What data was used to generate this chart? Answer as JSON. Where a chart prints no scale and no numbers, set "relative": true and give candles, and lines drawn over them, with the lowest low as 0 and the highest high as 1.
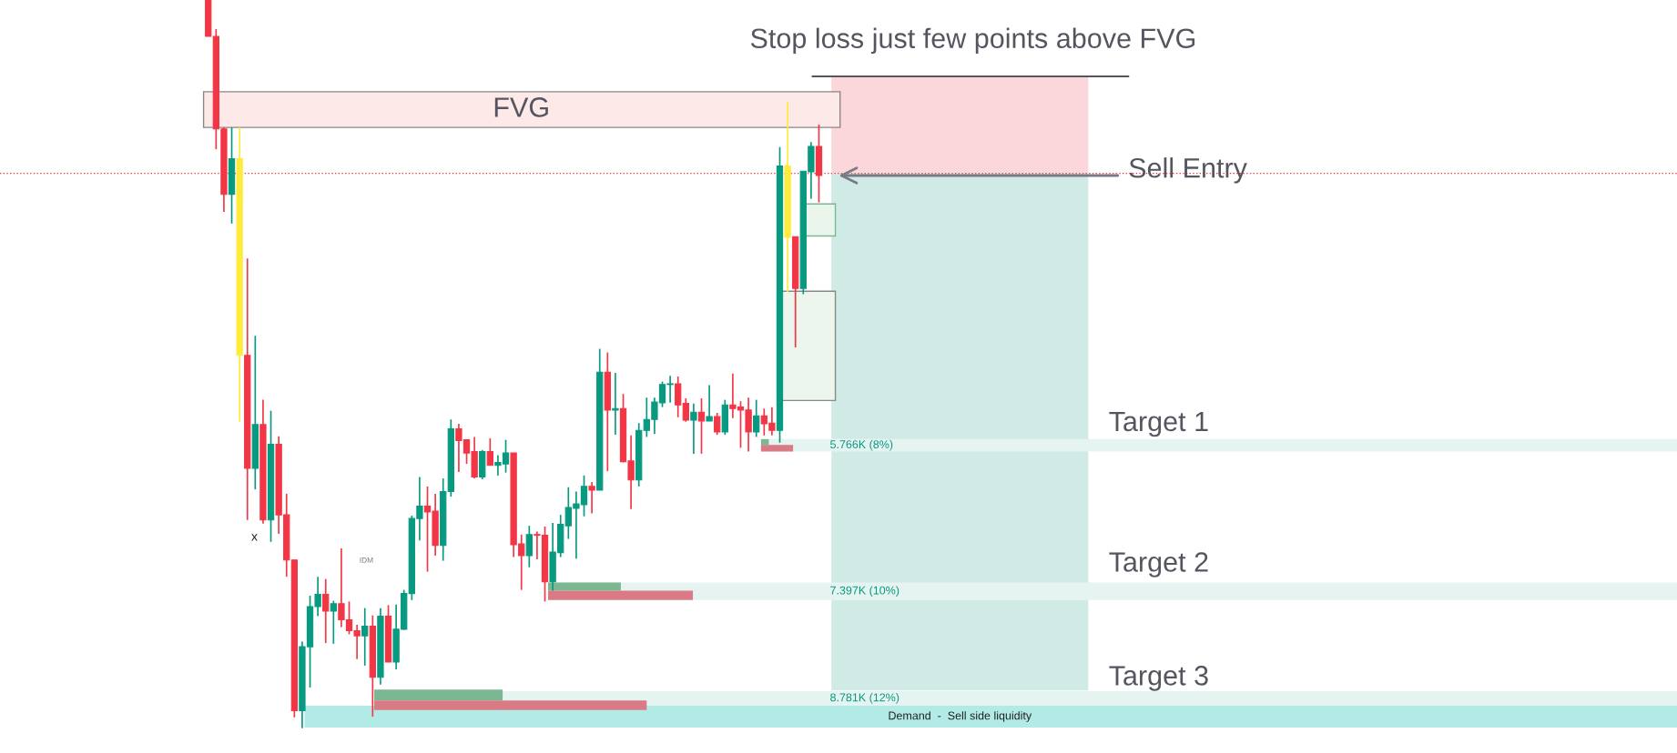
{
  "chart_data": {
    "type": "candlestick",
    "relative": true,
    "categories": [
      null,
      null,
      null,
      null,
      null,
      null,
      null,
      null,
      null,
      null,
      null,
      null,
      null,
      null,
      null,
      null,
      null,
      null,
      null,
      null,
      null,
      null,
      null,
      null,
      null,
      null,
      null,
      null,
      null,
      null,
      null,
      null,
      null,
      null,
      null,
      null,
      null,
      null,
      null,
      null,
      null,
      null,
      null,
      null,
      null,
      null,
      null,
      null,
      null,
      null,
      null,
      null,
      null,
      null,
      null,
      null,
      null,
      null,
      null,
      null,
      null,
      null,
      null,
      null,
      null,
      null,
      null,
      null,
      null,
      null,
      null,
      null,
      null,
      null,
      null,
      null,
      null,
      null,
      null
    ],
    "ohlc": [
      [
        1.0,
        1.0,
        0.95,
        0.95
      ],
      [
        0.95,
        0.96,
        0.795,
        0.823
      ],
      [
        0.823,
        0.825,
        0.709,
        0.733
      ],
      [
        0.733,
        0.825,
        0.693,
        0.782
      ],
      [
        0.782,
        0.825,
        0.421,
        0.512
      ],
      [
        0.512,
        0.645,
        0.286,
        0.357
      ],
      [
        0.357,
        0.539,
        0.328,
        0.417
      ],
      [
        0.417,
        0.451,
        0.281,
        0.286
      ],
      [
        0.286,
        0.436,
        0.256,
        0.39
      ],
      [
        0.39,
        0.401,
        0.267,
        0.293
      ],
      [
        0.293,
        0.322,
        0.208,
        0.231
      ],
      [
        0.231,
        0.231,
        0.015,
        0.024
      ],
      [
        0.024,
        0.119,
        0.0,
        0.112
      ],
      [
        0.112,
        0.182,
        0.056,
        0.167
      ],
      [
        0.167,
        0.208,
        0.154,
        0.184
      ],
      [
        0.184,
        0.205,
        0.117,
        0.161
      ],
      [
        0.161,
        0.175,
        0.116,
        0.171
      ],
      [
        0.171,
        0.247,
        0.139,
        0.149
      ],
      [
        0.149,
        0.174,
        0.129,
        0.134
      ],
      [
        0.134,
        0.142,
        0.095,
        0.127
      ],
      [
        0.127,
        0.165,
        0.086,
        0.14
      ],
      [
        0.14,
        0.155,
        0.016,
        0.07
      ],
      [
        0.07,
        0.165,
        0.06,
        0.154
      ],
      [
        0.154,
        0.169,
        0.091,
        0.091
      ],
      [
        0.091,
        0.17,
        0.081,
        0.136
      ],
      [
        0.136,
        0.19,
        0.135,
        0.185
      ],
      [
        0.185,
        0.292,
        0.176,
        0.288
      ],
      [
        0.288,
        0.345,
        0.258,
        0.305
      ],
      [
        0.305,
        0.332,
        0.215,
        0.297
      ],
      [
        0.298,
        0.322,
        0.237,
        0.251
      ],
      [
        0.251,
        0.343,
        0.23,
        0.325
      ],
      [
        0.325,
        0.424,
        0.318,
        0.411
      ],
      [
        0.411,
        0.418,
        0.352,
        0.395
      ],
      [
        0.396,
        0.397,
        0.363,
        0.378
      ],
      [
        0.38,
        0.4,
        0.343,
        0.345
      ],
      [
        0.345,
        0.382,
        0.342,
        0.38
      ],
      [
        0.38,
        0.398,
        0.361,
        0.361
      ],
      [
        0.361,
        0.375,
        0.347,
        0.365
      ],
      [
        0.363,
        0.396,
        0.351,
        0.378
      ],
      [
        0.378,
        0.378,
        0.235,
        0.252
      ],
      [
        0.253,
        0.266,
        0.19,
        0.237
      ],
      [
        0.237,
        0.278,
        0.221,
        0.266
      ],
      [
        0.266,
        0.27,
        0.232,
        0.265
      ],
      [
        0.265,
        0.277,
        0.174,
        0.201
      ],
      [
        0.201,
        0.282,
        0.189,
        0.242
      ],
      [
        0.241,
        0.293,
        0.235,
        0.28
      ],
      [
        0.278,
        0.331,
        0.26,
        0.303
      ],
      [
        0.302,
        0.325,
        0.233,
        0.308
      ],
      [
        0.307,
        0.347,
        0.291,
        0.332
      ],
      [
        0.332,
        0.338,
        0.295,
        0.327
      ],
      [
        0.327,
        0.521,
        0.327,
        0.489
      ],
      [
        0.489,
        0.516,
        0.353,
        0.437
      ],
      [
        0.437,
        0.488,
        0.403,
        0.439
      ],
      [
        0.439,
        0.459,
        0.365,
        0.366
      ],
      [
        0.367,
        0.402,
        0.301,
        0.341
      ],
      [
        0.341,
        0.419,
        0.332,
        0.409
      ],
      [
        0.409,
        0.454,
        0.4,
        0.424
      ],
      [
        0.424,
        0.454,
        0.404,
        0.448
      ],
      [
        0.447,
        0.476,
        0.441,
        0.472
      ],
      [
        0.472,
        0.484,
        0.447,
        0.473
      ],
      [
        0.473,
        0.483,
        0.427,
        0.444
      ],
      [
        0.446,
        0.453,
        0.421,
        0.423
      ],
      [
        0.423,
        0.446,
        0.377,
        0.434
      ],
      [
        0.434,
        0.453,
        0.377,
        0.422
      ],
      [
        0.422,
        0.471,
        0.422,
        0.428
      ],
      [
        0.428,
        0.433,
        0.403,
        0.407
      ],
      [
        0.407,
        0.451,
        0.403,
        0.444
      ],
      [
        0.444,
        0.487,
        0.426,
        0.439
      ],
      [
        0.441,
        0.449,
        0.385,
        0.437
      ],
      [
        0.437,
        0.454,
        0.38,
        0.407
      ],
      [
        0.407,
        0.451,
        0.4,
        0.429
      ],
      [
        0.429,
        0.439,
        0.402,
        0.418
      ],
      [
        0.419,
        0.441,
        0.402,
        0.409
      ],
      [
        0.409,
        0.798,
        0.392,
        0.772
      ],
      [
        0.772,
        0.86,
        0.599,
        0.674
      ],
      [
        0.675,
        0.675,
        0.523,
        0.604
      ],
      [
        0.604,
        0.765,
        0.596,
        0.765
      ],
      [
        0.764,
        0.805,
        0.727,
        0.799
      ],
      [
        0.799,
        0.829,
        0.722,
        0.759
      ]
    ],
    "colors": [
      "#f23645",
      "#f23645",
      "#f23645",
      "#089981",
      "#ffeb3b",
      "#f23645",
      "#089981",
      "#f23645",
      "#089981",
      "#f23645",
      "#f23645",
      "#f23645",
      "#089981",
      "#089981",
      "#089981",
      "#f23645",
      "#089981",
      "#f23645",
      "#f23645",
      "#f23645",
      "#089981",
      "#f23645",
      "#089981",
      "#f23645",
      "#089981",
      "#089981",
      "#089981",
      "#089981",
      "#f23645",
      "#f23645",
      "#089981",
      "#089981",
      "#f23645",
      "#f23645",
      "#f23645",
      "#089981",
      "#f23645",
      "#089981",
      "#089981",
      "#f23645",
      "#f23645",
      "#089981",
      "#f23645",
      "#f23645",
      "#089981",
      "#089981",
      "#089981",
      "#089981",
      "#089981",
      "#f23645",
      "#089981",
      "#f23645",
      "#089981",
      "#f23645",
      "#f23645",
      "#089981",
      "#089981",
      "#089981",
      "#089981",
      "#089981",
      "#f23645",
      "#f23645",
      "#089981",
      "#f23645",
      "#089981",
      "#f23645",
      "#089981",
      "#f23645",
      "#f23645",
      "#f23645",
      "#089981",
      "#f23645",
      "#f23645",
      "#089981",
      "#ffeb3b",
      "#f23645",
      "#089981",
      "#089981",
      "#f23645"
    ],
    "ref_lines": [
      {
        "axis": "y",
        "value": 0.762,
        "label": "Sell Entry",
        "color": "#f23645",
        "line_style": "dotted"
      }
    ],
    "bands": [
      {
        "axis": "y",
        "from": 0.825,
        "to": 0.874,
        "label": "FVG",
        "color": "#fde9e7"
      },
      {
        "axis": "y",
        "from": 0.38,
        "to": 0.397,
        "label": "5.766K (8%)",
        "color": "#e6f4f1"
      },
      {
        "axis": "y",
        "from": 0.176,
        "to": 0.2,
        "label": "7.397K (10%)",
        "color": "#e6f4f1"
      },
      {
        "axis": "y",
        "from": 0.031,
        "to": 0.051,
        "label": "8.781K (12%)",
        "color": "#e6f4f1"
      },
      {
        "axis": "y",
        "from": 0.001,
        "to": 0.031,
        "label": "Demand  -  Sell side liquidity",
        "color": "#b2ebe6"
      }
    ],
    "annotations": [
      "Stop loss just few points above FVG",
      "Target 1",
      "Target 2",
      "Target 3",
      "IDM",
      "x"
    ]
  }
}
